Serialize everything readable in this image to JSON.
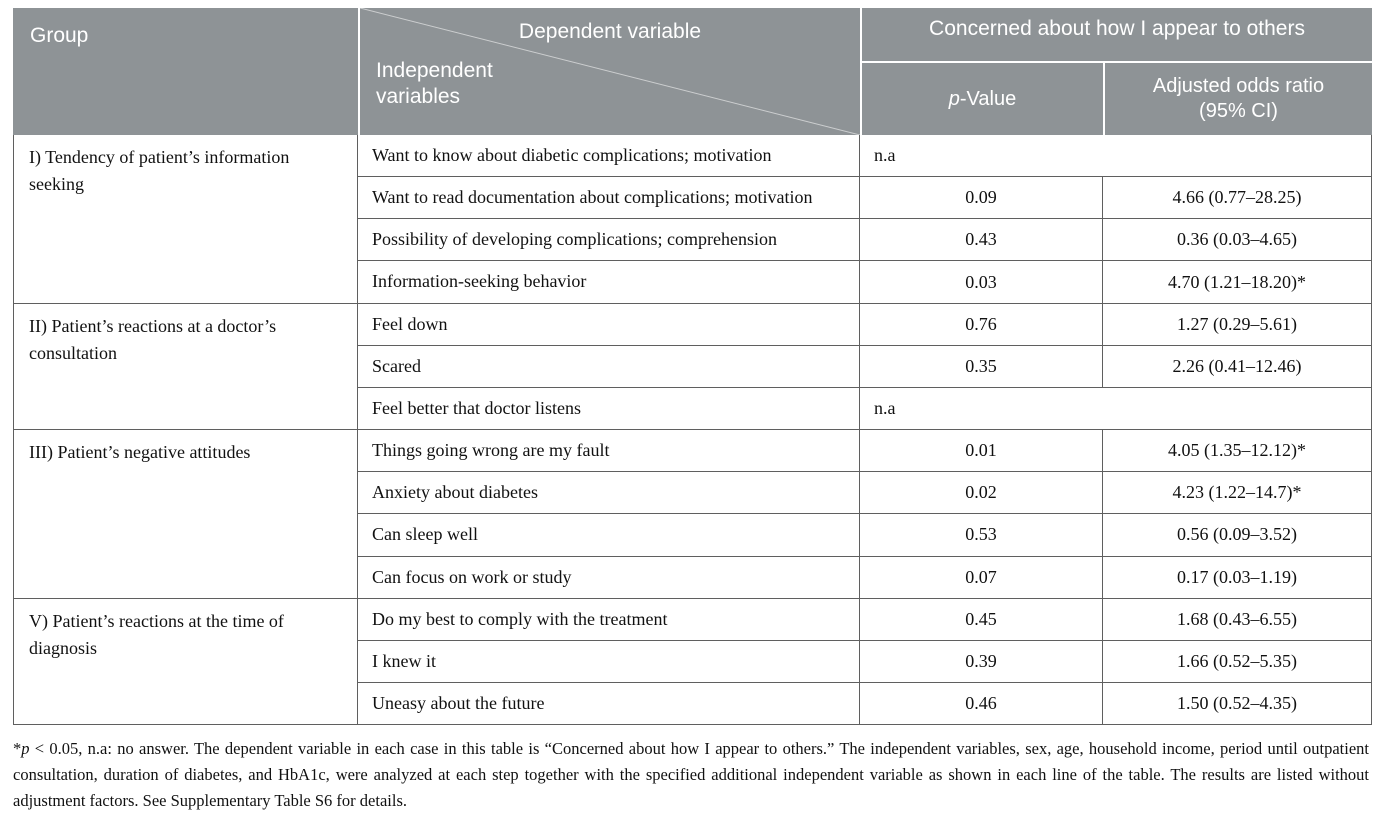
{
  "header": {
    "group_label": "Group",
    "dependent_label": "Dependent variable",
    "independent_label": "Independent variables",
    "concerned_label": "Concerned about how I appear to others",
    "p_value_italic": "p",
    "p_value_suffix": "-Value",
    "aor_label": "Adjusted odds ratio (95% CI)"
  },
  "colors": {
    "header_bg": "#8e9396",
    "header_text": "#ffffff",
    "border": "#5f5f5f"
  },
  "table": {
    "groups": [
      {
        "label": "I) Tendency of patient’s information seeking",
        "rows": [
          {
            "variable": "Want to know about diabetic complications; motivation",
            "p": "n.a",
            "aor": null
          },
          {
            "variable": "Want to read documentation about complications; motivation",
            "p": "0.09",
            "aor": "4.66 (0.77–28.25)"
          },
          {
            "variable": "Possibility of developing complications; comprehension",
            "p": "0.43",
            "aor": "0.36 (0.03–4.65)"
          },
          {
            "variable": "Information-seeking behavior",
            "p": "0.03",
            "aor": "4.70 (1.21–18.20)*"
          }
        ]
      },
      {
        "label": "II) Patient’s reactions at a doctor’s consultation",
        "rows": [
          {
            "variable": "Feel down",
            "p": "0.76",
            "aor": "1.27 (0.29–5.61)"
          },
          {
            "variable": "Scared",
            "p": "0.35",
            "aor": "2.26 (0.41–12.46)"
          },
          {
            "variable": "Feel better that doctor listens",
            "p": "n.a",
            "aor": null
          }
        ]
      },
      {
        "label": "III) Patient’s negative attitudes",
        "rows": [
          {
            "variable": "Things going wrong are my fault",
            "p": "0.01",
            "aor": "4.05 (1.35–12.12)*"
          },
          {
            "variable": "Anxiety about diabetes",
            "p": "0.02",
            "aor": "4.23 (1.22–14.7)*"
          },
          {
            "variable": "Can sleep well",
            "p": "0.53",
            "aor": "0.56 (0.09–3.52)"
          },
          {
            "variable": "Can focus on work or study",
            "p": "0.07",
            "aor": "0.17 (0.03–1.19)"
          }
        ]
      },
      {
        "label": "V) Patient’s reactions at the time of diagnosis",
        "rows": [
          {
            "variable": "Do my best to comply with the treatment",
            "p": "0.45",
            "aor": "1.68 (0.43–6.55)"
          },
          {
            "variable": "I knew it",
            "p": "0.39",
            "aor": "1.66 (0.52–5.35)"
          },
          {
            "variable": "Uneasy about the future",
            "p": "0.46",
            "aor": "1.50 (0.52–4.35)"
          }
        ]
      }
    ]
  },
  "footnote": {
    "marker": "*",
    "p_italic": "p",
    "text": " < 0.05, n.a: no answer. The dependent variable in each case in this table is “Concerned about how I appear to others.” The independent variables, sex, age, household income, period until outpatient consultation, duration of diabetes, and HbA1c, were analyzed at each step together with the specified additional independent variable as shown in each line of the table. The results are listed without adjustment factors. See Supplementary Table S6 for details."
  }
}
